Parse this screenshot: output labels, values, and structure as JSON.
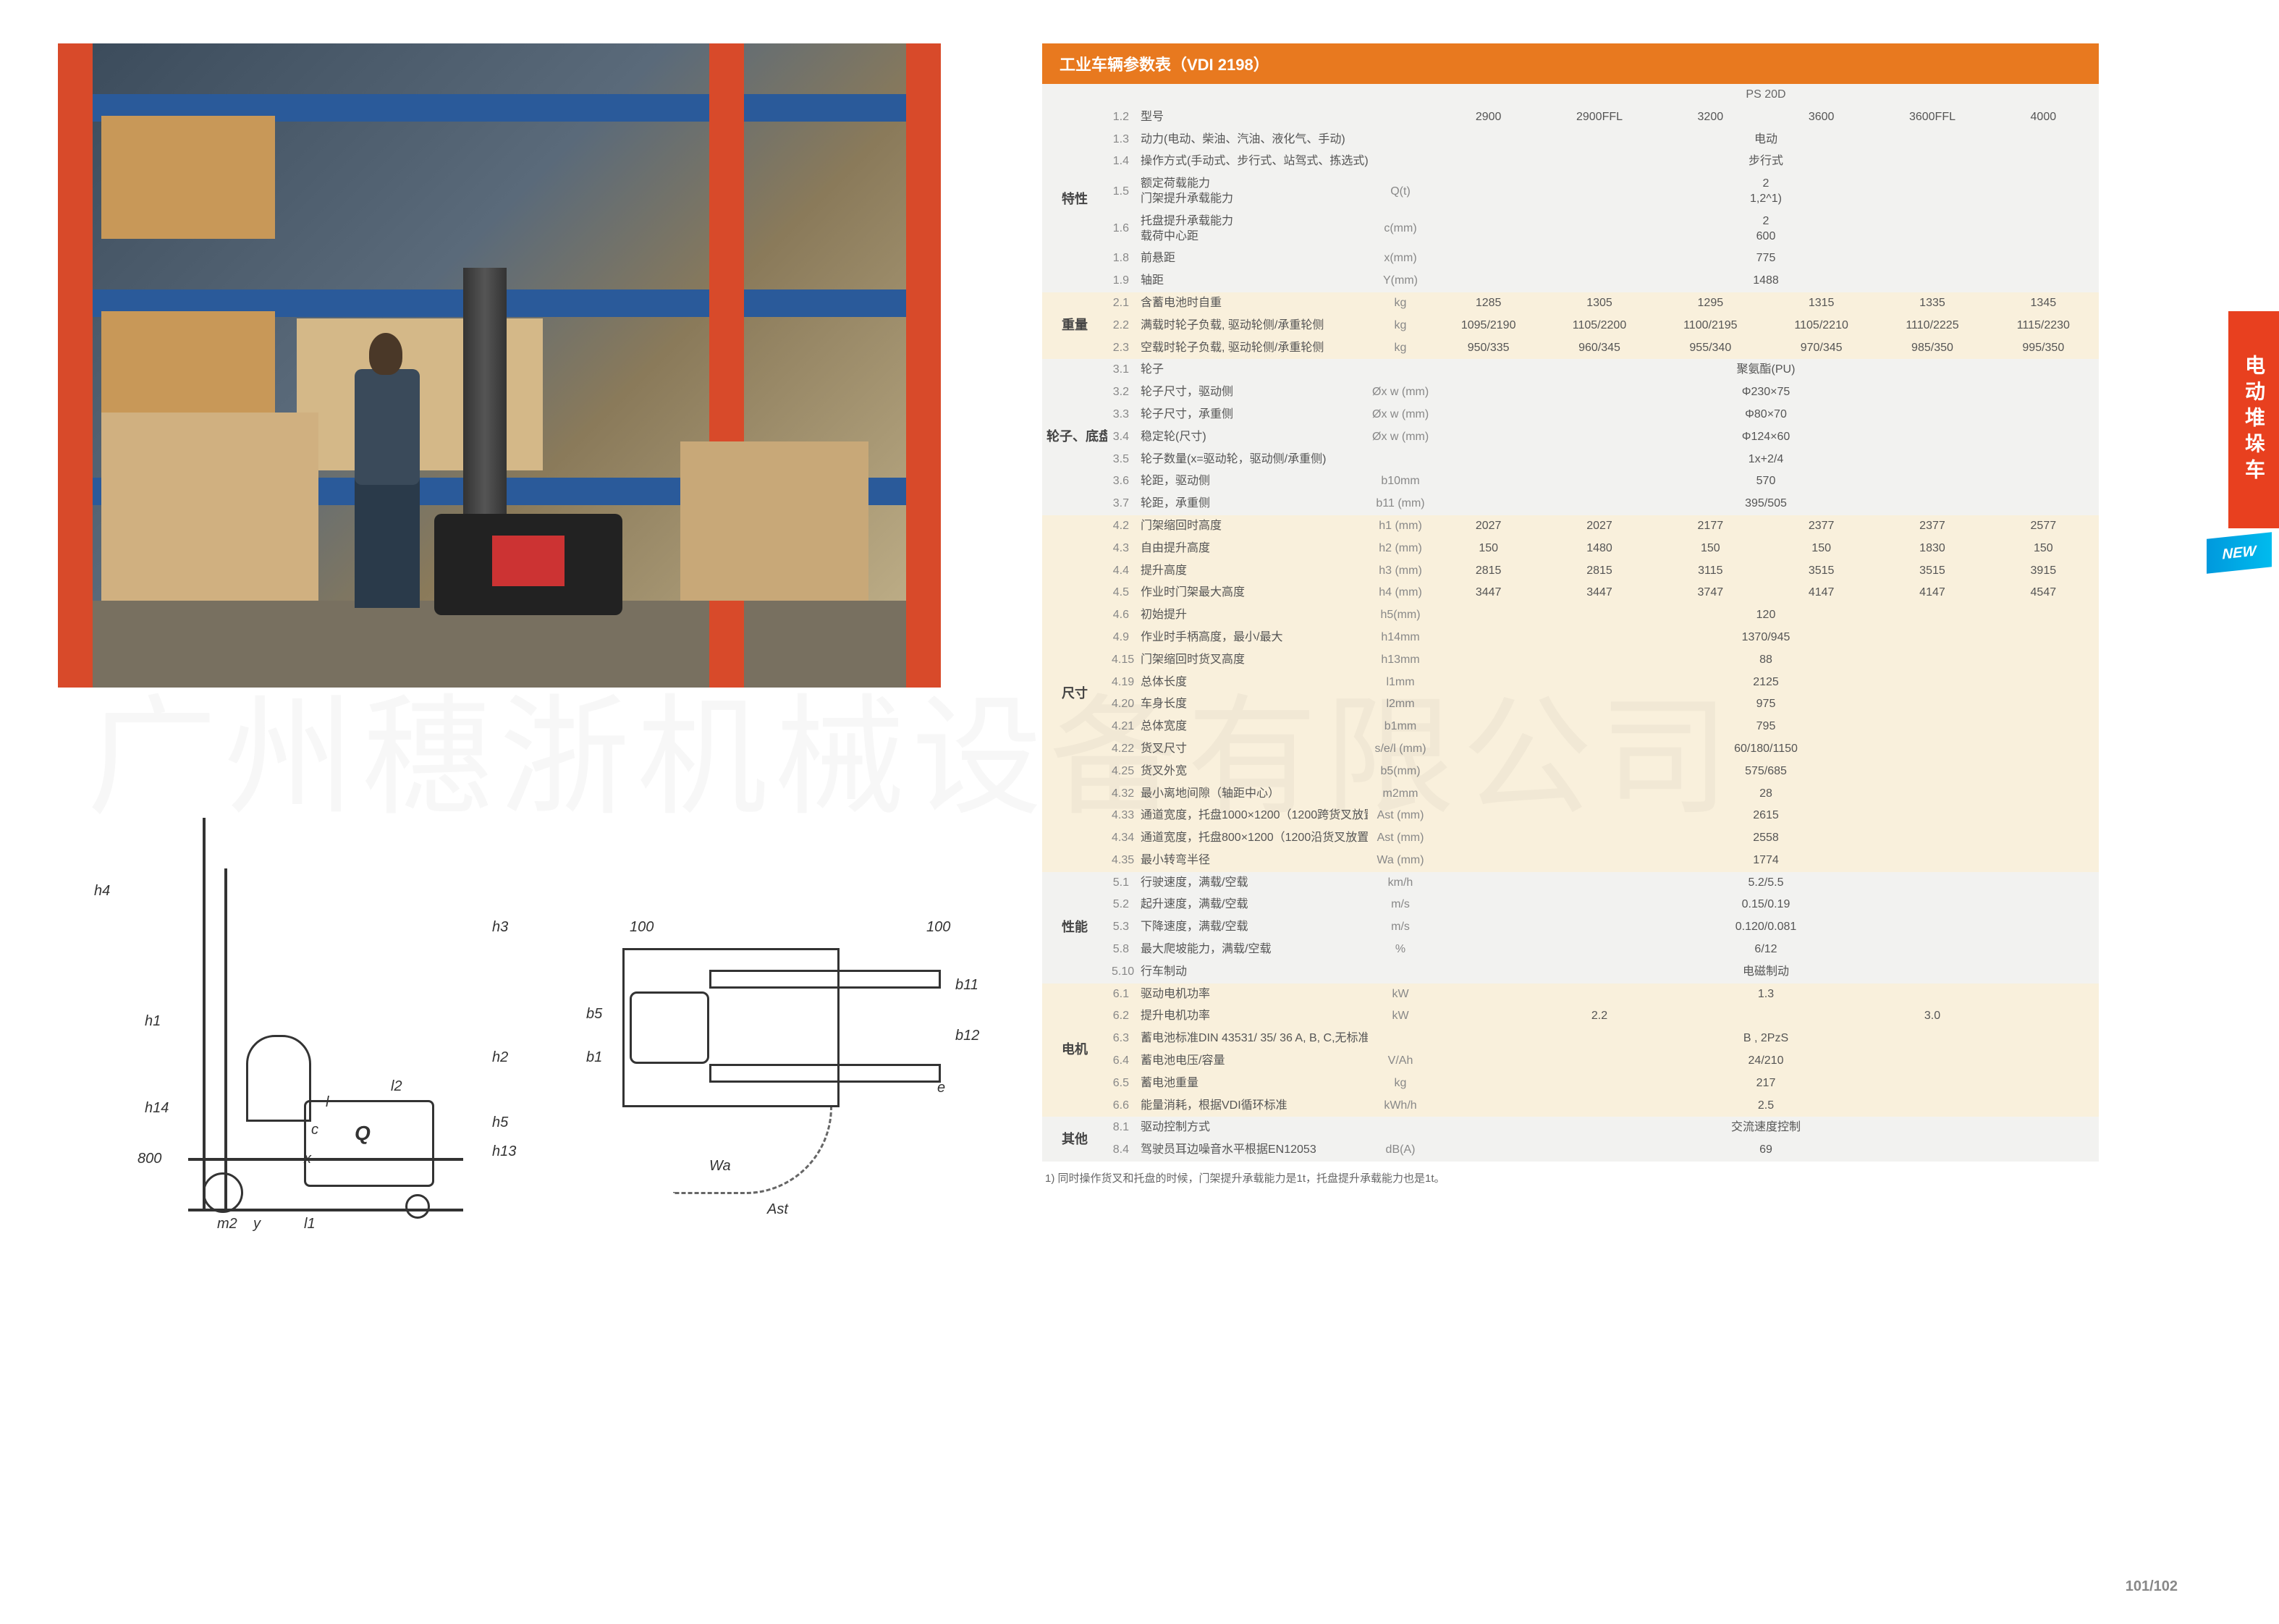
{
  "table_title": "工业车辆参数表（VDI 2198）",
  "model_header": "PS 20D",
  "variants": [
    "2900",
    "2900FFL",
    "3200",
    "3600",
    "3600FFL",
    "4000"
  ],
  "footnote": "1) 同时操作货叉和托盘的时候，门架提升承载能力是1t，托盘提升承载能力也是1t。",
  "side_tab": "电动堆垛车",
  "new_badge": "NEW",
  "page_number": "101/102",
  "watermark": "广州穗浙机械设备有限公司",
  "sections": [
    {
      "name": "特性",
      "rows": [
        {
          "n": "1.2",
          "label": "型号",
          "unit": "",
          "vals": [
            "2900",
            "2900FFL",
            "3200",
            "3600",
            "3600FFL",
            "4000"
          ],
          "is_variant_header": true
        },
        {
          "n": "1.3",
          "label": "动力(电动、柴油、汽油、液化气、手动)",
          "unit": "",
          "span": "电动"
        },
        {
          "n": "1.4",
          "label": "操作方式(手动式、步行式、站驾式、拣选式)",
          "unit": "",
          "span": "步行式"
        },
        {
          "n": "1.5",
          "label": "额定荷载能力\n门架提升承载能力",
          "unit": "Q(t)",
          "span": "2\n1,2^1)"
        },
        {
          "n": "1.6",
          "label": "托盘提升承载能力\n载荷中心距",
          "unit": "c(mm)",
          "span": "2\n600"
        },
        {
          "n": "1.8",
          "label": "前悬距",
          "unit": "x(mm)",
          "span": "775"
        },
        {
          "n": "1.9",
          "label": "轴距",
          "unit": "Y(mm)",
          "span": "1488"
        }
      ]
    },
    {
      "name": "重量",
      "rows": [
        {
          "n": "2.1",
          "label": "含蓄电池时自重",
          "unit": "kg",
          "vals": [
            "1285",
            "1305",
            "1295",
            "1315",
            "1335",
            "1345"
          ]
        },
        {
          "n": "2.2",
          "label": "满载时轮子负载, 驱动轮侧/承重轮侧",
          "unit": "kg",
          "vals": [
            "1095/2190",
            "1105/2200",
            "1100/2195",
            "1105/2210",
            "1110/2225",
            "1115/2230"
          ]
        },
        {
          "n": "2.3",
          "label": "空载时轮子负载, 驱动轮侧/承重轮侧",
          "unit": "kg",
          "vals": [
            "950/335",
            "960/345",
            "955/340",
            "970/345",
            "985/350",
            "995/350"
          ]
        }
      ]
    },
    {
      "name": "轮子、底盘",
      "rows": [
        {
          "n": "3.1",
          "label": "轮子",
          "unit": "",
          "span": "聚氨酯(PU)"
        },
        {
          "n": "3.2",
          "label": "轮子尺寸，驱动侧",
          "unit": "Øx w (mm)",
          "span": "Φ230×75"
        },
        {
          "n": "3.3",
          "label": "轮子尺寸，承重侧",
          "unit": "Øx w (mm)",
          "span": "Φ80×70"
        },
        {
          "n": "3.4",
          "label": "稳定轮(尺寸)",
          "unit": "Øx w (mm)",
          "span": "Φ124×60"
        },
        {
          "n": "3.5",
          "label": "轮子数量(x=驱动轮，驱动侧/承重侧)",
          "unit": "",
          "span": "1x+2/4"
        },
        {
          "n": "3.6",
          "label": "轮距，驱动侧",
          "unit": "b10mm",
          "span": "570"
        },
        {
          "n": "3.7",
          "label": "轮距，承重侧",
          "unit": "b11 (mm)",
          "span": "395/505"
        }
      ]
    },
    {
      "name": "尺寸",
      "rows": [
        {
          "n": "4.2",
          "label": "门架缩回时高度",
          "unit": "h1 (mm)",
          "vals": [
            "2027",
            "2027",
            "2177",
            "2377",
            "2377",
            "2577"
          ]
        },
        {
          "n": "4.3",
          "label": "自由提升高度",
          "unit": "h2 (mm)",
          "vals": [
            "150",
            "1480",
            "150",
            "150",
            "1830",
            "150"
          ]
        },
        {
          "n": "4.4",
          "label": "提升高度",
          "unit": "h3 (mm)",
          "vals": [
            "2815",
            "2815",
            "3115",
            "3515",
            "3515",
            "3915"
          ]
        },
        {
          "n": "4.5",
          "label": "作业时门架最大高度",
          "unit": "h4 (mm)",
          "vals": [
            "3447",
            "3447",
            "3747",
            "4147",
            "4147",
            "4547"
          ]
        },
        {
          "n": "4.6",
          "label": "初始提升",
          "unit": "h5(mm)",
          "span": "120"
        },
        {
          "n": "4.9",
          "label": "作业时手柄高度，最小/最大",
          "unit": "h14mm",
          "span": "1370/945"
        },
        {
          "n": "4.15",
          "label": "门架缩回时货叉高度",
          "unit": "h13mm",
          "span": "88"
        },
        {
          "n": "4.19",
          "label": "总体长度",
          "unit": "l1mm",
          "span": "2125"
        },
        {
          "n": "4.20",
          "label": "车身长度",
          "unit": "l2mm",
          "span": "975"
        },
        {
          "n": "4.21",
          "label": "总体宽度",
          "unit": "b1mm",
          "span": "795"
        },
        {
          "n": "4.22",
          "label": "货叉尺寸",
          "unit": "s/e/l (mm)",
          "span": "60/180/1150"
        },
        {
          "n": "4.25",
          "label": "货叉外宽",
          "unit": "b5(mm)",
          "span": "575/685"
        },
        {
          "n": "4.32",
          "label": "最小离地间隙（轴距中心）",
          "unit": "m2mm",
          "span": "28"
        },
        {
          "n": "4.33",
          "label": "通道宽度，托盘1000×1200（1200跨货叉放置）",
          "unit": "Ast (mm)",
          "span": "2615"
        },
        {
          "n": "4.34",
          "label": "通道宽度，托盘800×1200（1200沿货叉放置）",
          "unit": "Ast (mm)",
          "span": "2558"
        },
        {
          "n": "4.35",
          "label": "最小转弯半径",
          "unit": "Wa (mm)",
          "span": "1774"
        }
      ]
    },
    {
      "name": "性能",
      "rows": [
        {
          "n": "5.1",
          "label": "行驶速度，满载/空载",
          "unit": "km/h",
          "span": "5.2/5.5"
        },
        {
          "n": "5.2",
          "label": "起升速度，满载/空载",
          "unit": "m/s",
          "span": "0.15/0.19"
        },
        {
          "n": "5.3",
          "label": "下降速度，满载/空载",
          "unit": "m/s",
          "span": "0.120/0.081"
        },
        {
          "n": "5.8",
          "label": "最大爬坡能力，满载/空载",
          "unit": "%",
          "span": "6/12"
        },
        {
          "n": "5.10",
          "label": "行车制动",
          "unit": "",
          "span": "电磁制动"
        }
      ]
    },
    {
      "name": "电机",
      "rows": [
        {
          "n": "6.1",
          "label": "驱动电机功率",
          "unit": "kW",
          "span": "1.3"
        },
        {
          "n": "6.2",
          "label": "提升电机功率",
          "unit": "kW",
          "vals": [
            "2.2",
            "",
            "",
            "3.0",
            "",
            ""
          ],
          "group2": true
        },
        {
          "n": "6.3",
          "label": "蓄电池标准DIN 43531/ 35/ 36 A, B, C,无标准",
          "unit": "",
          "span": "B , 2PzS"
        },
        {
          "n": "6.4",
          "label": "蓄电池电压/容量",
          "unit": "V/Ah",
          "span": "24/210"
        },
        {
          "n": "6.5",
          "label": "蓄电池重量",
          "unit": "kg",
          "span": "217"
        },
        {
          "n": "6.6",
          "label": "能量消耗，根据VDI循环标准",
          "unit": "kWh/h",
          "span": "2.5"
        }
      ]
    },
    {
      "name": "其他",
      "rows": [
        {
          "n": "8.1",
          "label": "驱动控制方式",
          "unit": "",
          "span": "交流速度控制"
        },
        {
          "n": "8.4",
          "label": "驾驶员耳边噪音水平根据EN12053",
          "unit": "dB(A)",
          "span": "69"
        }
      ]
    }
  ],
  "diagram_labels": {
    "side": [
      "h4",
      "h1",
      "h14",
      "800",
      "h3",
      "h13",
      "h2",
      "h5",
      "m2",
      "c",
      "Q",
      "l",
      "l2",
      "x",
      "y",
      "l1"
    ],
    "top": [
      "100",
      "100",
      "b5",
      "b1",
      "b11",
      "b12",
      "Wa",
      "Ast",
      "e"
    ]
  }
}
